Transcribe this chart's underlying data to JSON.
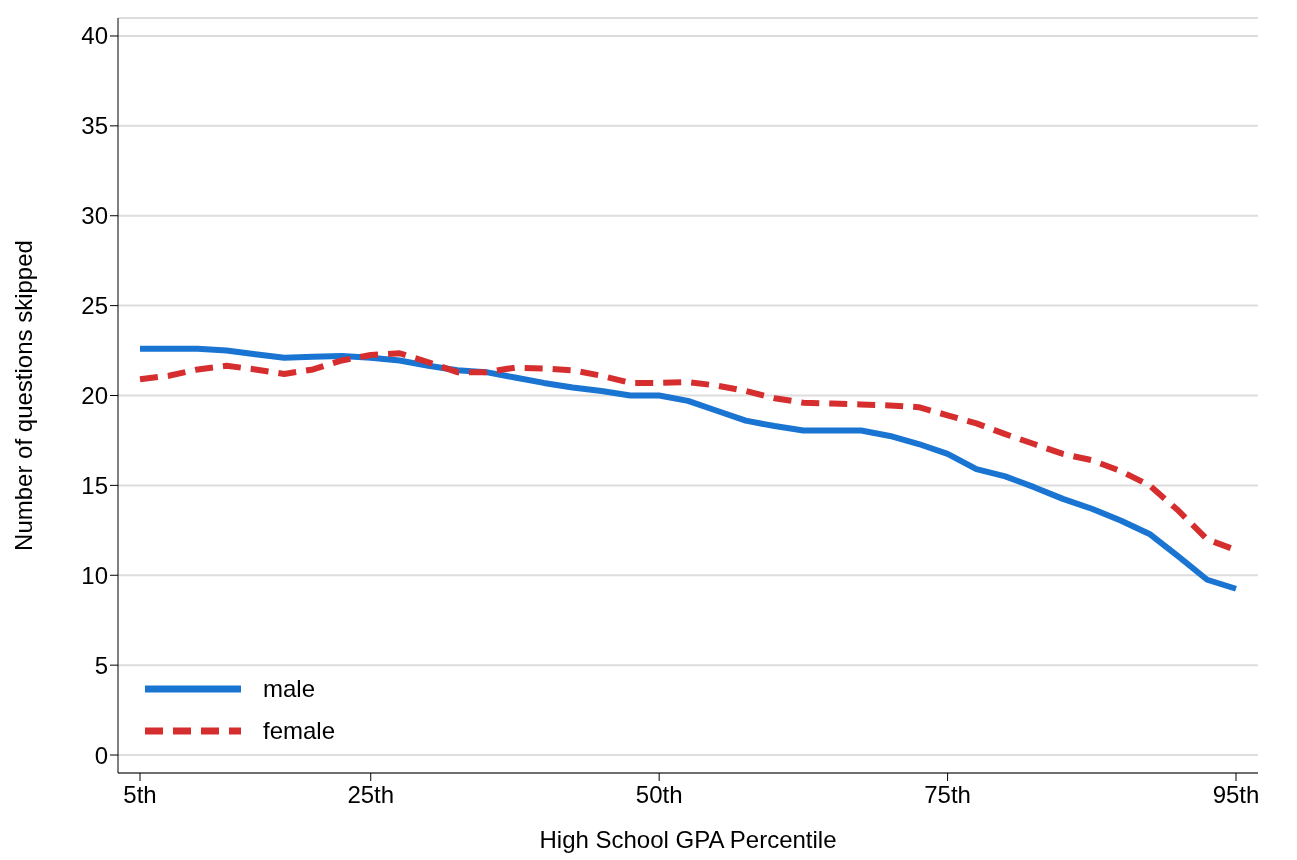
{
  "chart_data": {
    "type": "line",
    "xlabel": "High School GPA Percentile",
    "ylabel": "Number of questions skipped",
    "categories": [
      "5th",
      null,
      null,
      null,
      null,
      null,
      null,
      null,
      "25th",
      null,
      null,
      null,
      null,
      null,
      null,
      null,
      null,
      null,
      "50th",
      null,
      null,
      null,
      null,
      null,
      null,
      null,
      null,
      null,
      "75th",
      null,
      null,
      null,
      null,
      null,
      null,
      null,
      null,
      null,
      "95th"
    ],
    "ylim": [
      -1,
      41
    ],
    "yticks": [
      0,
      5,
      10,
      15,
      20,
      25,
      30,
      35,
      40
    ],
    "grid": "y",
    "legend": "bottom left",
    "marker": "none",
    "series": [
      {
        "name": "male",
        "color": "#1a74d2",
        "line_style": "solid",
        "values": [
          22.6,
          22.6,
          22.6,
          22.5,
          22.3,
          22.1,
          22.15,
          22.2,
          22.1,
          21.95,
          21.65,
          21.4,
          21.3,
          21.0,
          20.7,
          20.45,
          20.25,
          20.0,
          20.0,
          19.7,
          19.15,
          18.6,
          18.3,
          18.05,
          18.05,
          18.05,
          17.75,
          17.3,
          16.75,
          15.9,
          15.5,
          14.9,
          14.25,
          13.7,
          13.05,
          12.3,
          11.05,
          9.75,
          9.25
        ]
      },
      {
        "name": "female",
        "color": "#d62e2e",
        "line_style": "dashed",
        "values": [
          20.9,
          21.1,
          21.45,
          21.65,
          21.45,
          21.2,
          21.45,
          21.95,
          22.25,
          22.35,
          21.85,
          21.3,
          21.3,
          21.55,
          21.5,
          21.4,
          21.1,
          20.7,
          20.7,
          20.75,
          20.55,
          20.25,
          19.85,
          19.6,
          19.55,
          19.5,
          19.45,
          19.35,
          18.9,
          18.45,
          17.85,
          17.3,
          16.75,
          16.4,
          15.8,
          15.0,
          13.6,
          12.0,
          11.4
        ]
      }
    ]
  }
}
